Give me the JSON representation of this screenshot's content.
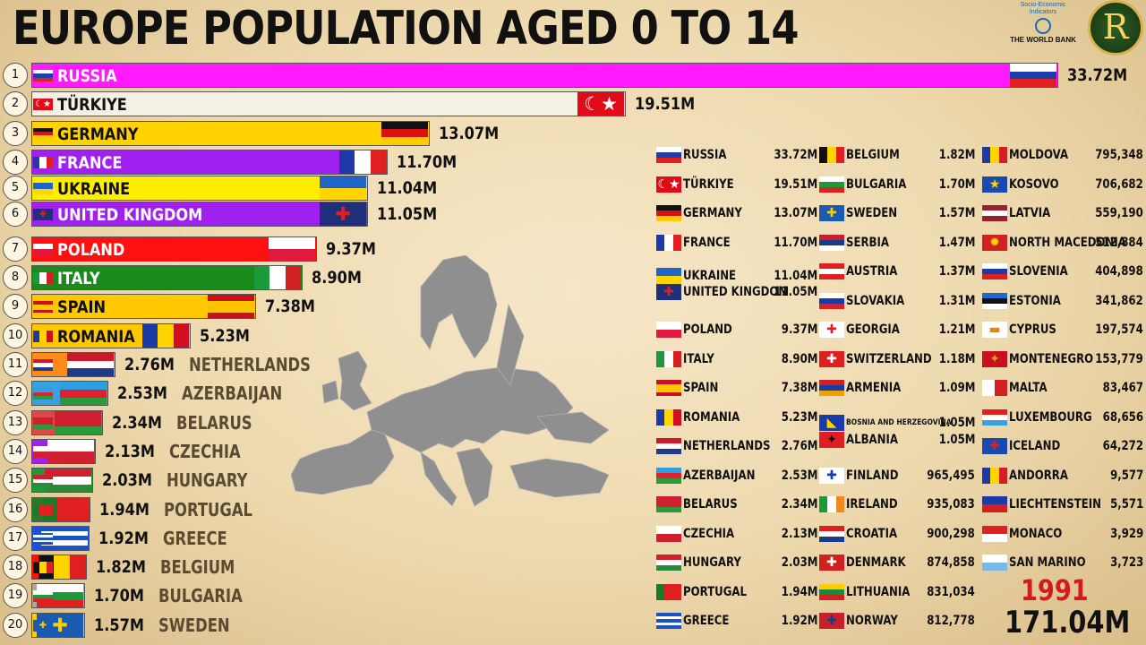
{
  "title": "EUROPE POPULATION  AGED 0 TO 14",
  "source_logo": {
    "line1": "Socio-Economic",
    "line2": "Indicators",
    "brand": "THE WORLD BANK"
  },
  "channel_logo": {
    "letter": "R"
  },
  "year": "1991",
  "total": "171.04M",
  "colors": {
    "year": "#d21c1c"
  },
  "chart_data": {
    "type": "bar",
    "orientation": "horizontal",
    "title": "EUROPE POPULATION  AGED 0 TO 14",
    "unit": "M",
    "bars": [
      {
        "rank": "1",
        "name": "RUSSIA",
        "value": 33.72,
        "label": "33.72M",
        "color": "#ff1aff",
        "flag": "russia"
      },
      {
        "rank": "2",
        "name": "TÜRKIYE",
        "value": 19.51,
        "label": "19.51M",
        "color": "#f5f0e4",
        "flag": "turkiye"
      },
      {
        "rank": "3",
        "name": "GERMANY",
        "value": 13.07,
        "label": "13.07M",
        "color": "#ffd200",
        "flag": "germany"
      },
      {
        "rank": "4",
        "name": "FRANCE",
        "value": 11.7,
        "label": "11.70M",
        "color": "#a020f0",
        "flag": "france"
      },
      {
        "rank": "5",
        "name": "UKRAINE",
        "value": 11.04,
        "label": "11.04M",
        "color": "#ffee00",
        "flag": "ukraine"
      },
      {
        "rank": "6",
        "name": "UNITED KINGDOM",
        "value": 11.05,
        "label": "11.05M",
        "color": "#a020f0",
        "flag": "uk"
      },
      {
        "rank": "7",
        "name": "POLAND",
        "value": 9.37,
        "label": "9.37M",
        "color": "#ff1010",
        "flag": "poland"
      },
      {
        "rank": "8",
        "name": "ITALY",
        "value": 8.9,
        "label": "8.90M",
        "color": "#1a8a1a",
        "flag": "italy"
      },
      {
        "rank": "9",
        "name": "SPAIN",
        "value": 7.38,
        "label": "7.38M",
        "color": "#ffc800",
        "flag": "spain"
      },
      {
        "rank": "10",
        "name": "ROMANIA",
        "value": 5.23,
        "label": "5.23M",
        "color": "#ffc800",
        "flag": "romania"
      },
      {
        "rank": "11",
        "name": "NETHERLANDS",
        "value": 2.76,
        "label": "2.76M",
        "color": "#ff8c1a",
        "flag": "netherlands"
      },
      {
        "rank": "12",
        "name": "AZERBAIJAN",
        "value": 2.53,
        "label": "2.53M",
        "color": "#3aa0e0",
        "flag": "azerbaijan"
      },
      {
        "rank": "13",
        "name": "BELARUS",
        "value": 2.34,
        "label": "2.34M",
        "color": "#e04848",
        "flag": "belarus"
      },
      {
        "rank": "14",
        "name": "CZECHIA",
        "value": 2.13,
        "label": "2.13M",
        "color": "#a020f0",
        "flag": "czechia"
      },
      {
        "rank": "15",
        "name": "HUNGARY",
        "value": 2.03,
        "label": "2.03M",
        "color": "#1a9a3a",
        "flag": "hungary"
      },
      {
        "rank": "16",
        "name": "PORTUGAL",
        "value": 1.94,
        "label": "1.94M",
        "color": "#2a7a2a",
        "flag": "portugal"
      },
      {
        "rank": "17",
        "name": "GREECE",
        "value": 1.92,
        "label": "1.92M",
        "color": "#1a50e0",
        "flag": "greece"
      },
      {
        "rank": "18",
        "name": "BELGIUM",
        "value": 1.82,
        "label": "1.82M",
        "color": "#ff1010",
        "flag": "belgium"
      },
      {
        "rank": "19",
        "name": "BULGARIA",
        "value": 1.7,
        "label": "1.70M",
        "color": "#aaa8a0",
        "flag": "bulgaria"
      },
      {
        "rank": "20",
        "name": "SWEDEN",
        "value": 1.57,
        "label": "1.57M",
        "color": "#ffcc00",
        "flag": "sweden"
      }
    ],
    "table": [
      [
        {
          "name": "RUSSIA",
          "value": "33.72M",
          "flag": "russia"
        },
        {
          "name": "TÜRKIYE",
          "value": "19.51M",
          "flag": "turkiye"
        },
        {
          "name": "GERMANY",
          "value": "13.07M",
          "flag": "germany"
        },
        {
          "name": "FRANCE",
          "value": "11.70M",
          "flag": "france"
        },
        {
          "name": "UKRAINE",
          "value": "11.04M",
          "flag": "ukraine"
        },
        {
          "name": "UNITED KINGDOM",
          "value": "11.05M",
          "flag": "uk"
        },
        {
          "name": "POLAND",
          "value": "9.37M",
          "flag": "poland"
        },
        {
          "name": "ITALY",
          "value": "8.90M",
          "flag": "italy"
        },
        {
          "name": "SPAIN",
          "value": "7.38M",
          "flag": "spain"
        },
        {
          "name": "ROMANIA",
          "value": "5.23M",
          "flag": "romania"
        },
        {
          "name": "NETHERLANDS",
          "value": "2.76M",
          "flag": "netherlands"
        },
        {
          "name": "AZERBAIJAN",
          "value": "2.53M",
          "flag": "azerbaijan"
        },
        {
          "name": "BELARUS",
          "value": "2.34M",
          "flag": "belarus"
        },
        {
          "name": "CZECHIA",
          "value": "2.13M",
          "flag": "czechia"
        },
        {
          "name": "HUNGARY",
          "value": "2.03M",
          "flag": "hungary"
        },
        {
          "name": "PORTUGAL",
          "value": "1.94M",
          "flag": "portugal"
        },
        {
          "name": "GREECE",
          "value": "1.92M",
          "flag": "greece"
        }
      ],
      [
        {
          "name": "BELGIUM",
          "value": "1.82M",
          "flag": "belgium"
        },
        {
          "name": "BULGARIA",
          "value": "1.70M",
          "flag": "bulgaria"
        },
        {
          "name": "SWEDEN",
          "value": "1.57M",
          "flag": "sweden"
        },
        {
          "name": "SERBIA",
          "value": "1.47M",
          "flag": "serbia"
        },
        {
          "name": "AUSTRIA",
          "value": "1.37M",
          "flag": "austria"
        },
        {
          "name": "SLOVAKIA",
          "value": "1.31M",
          "flag": "slovakia"
        },
        {
          "name": "GEORGIA",
          "value": "1.21M",
          "flag": "georgia"
        },
        {
          "name": "SWITZERLAND",
          "value": "1.18M",
          "flag": "switzerland"
        },
        {
          "name": "ARMENIA",
          "value": "1.09M",
          "flag": "armenia"
        },
        {
          "name": "BOSNIA AND HERZEGOVINA",
          "value": "1.05M",
          "flag": "bosnia"
        },
        {
          "name": "ALBANIA",
          "value": "1.05M",
          "flag": "albania"
        },
        {
          "name": "FINLAND",
          "value": "965,495",
          "flag": "finland"
        },
        {
          "name": "IRELAND",
          "value": "935,083",
          "flag": "ireland"
        },
        {
          "name": "CROATIA",
          "value": "900,298",
          "flag": "croatia"
        },
        {
          "name": "DENMARK",
          "value": "874,858",
          "flag": "denmark"
        },
        {
          "name": "LITHUANIA",
          "value": "831,034",
          "flag": "lithuania"
        },
        {
          "name": "NORWAY",
          "value": "812,778",
          "flag": "norway"
        }
      ],
      [
        {
          "name": "MOLDOVA",
          "value": "795,348",
          "flag": "moldova"
        },
        {
          "name": "KOSOVO",
          "value": "706,682",
          "flag": "kosovo"
        },
        {
          "name": "LATVIA",
          "value": "559,190",
          "flag": "latvia"
        },
        {
          "name": "NORTH MACEDONIA",
          "value": "512,884",
          "flag": "macedonia"
        },
        {
          "name": "SLOVENIA",
          "value": "404,898",
          "flag": "slovenia"
        },
        {
          "name": "ESTONIA",
          "value": "341,862",
          "flag": "estonia"
        },
        {
          "name": "CYPRUS",
          "value": "197,574",
          "flag": "cyprus"
        },
        {
          "name": "MONTENEGRO",
          "value": "153,779",
          "flag": "montenegro"
        },
        {
          "name": "MALTA",
          "value": "83,467",
          "flag": "malta"
        },
        {
          "name": "LUXEMBOURG",
          "value": "68,656",
          "flag": "luxembourg"
        },
        {
          "name": "ICELAND",
          "value": "64,272",
          "flag": "iceland"
        },
        {
          "name": "ANDORRA",
          "value": "9,577",
          "flag": "andorra"
        },
        {
          "name": "LIECHTENSTEIN",
          "value": "5,571",
          "flag": "liechtenstein"
        },
        {
          "name": "MONACO",
          "value": "3,929",
          "flag": "monaco"
        },
        {
          "name": "SAN MARINO",
          "value": "3,723",
          "flag": "sanmarino"
        }
      ]
    ]
  }
}
